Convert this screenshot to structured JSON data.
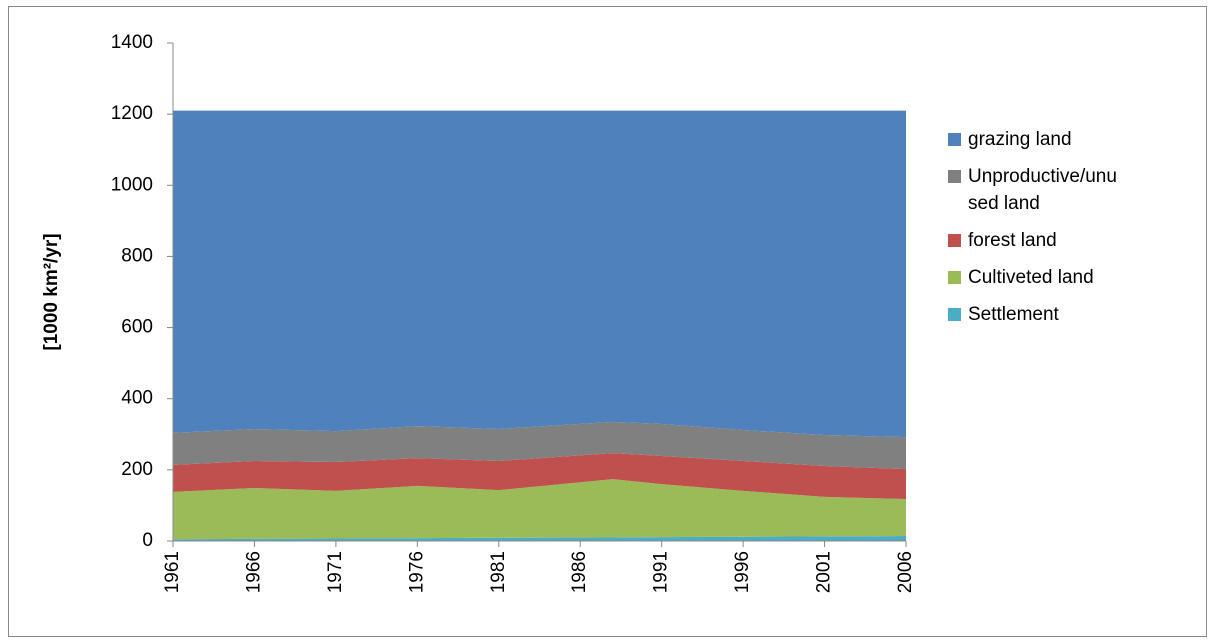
{
  "chart_data": {
    "type": "stacked-area",
    "y_label": "[1000 km²/yr]",
    "x": [
      1961,
      1966,
      1971,
      1976,
      1981,
      1988,
      1991,
      1996,
      2001,
      2006
    ],
    "xlim": [
      1961,
      2006
    ],
    "xticks": [
      1961,
      1966,
      1971,
      1976,
      1981,
      1986,
      1991,
      1996,
      2001,
      2006
    ],
    "ylim": [
      0,
      1400
    ],
    "yticks": [
      0,
      200,
      400,
      600,
      800,
      1000,
      1200,
      1400
    ],
    "grid": false,
    "legend": "right",
    "series": [
      {
        "name": "grazing land",
        "color": "#4f81bd",
        "values": [
          906,
          895,
          901,
          887,
          895,
          875,
          881,
          898,
          912,
          918
        ]
      },
      {
        "name": "Unproductive/unused land",
        "color": "#808080",
        "values": [
          90,
          90,
          87,
          90,
          90,
          88,
          90,
          87,
          87,
          90
        ]
      },
      {
        "name": "forest land",
        "color": "#c0504d",
        "values": [
          76,
          76,
          81,
          78,
          82,
          73,
          79,
          84,
          87,
          84
        ]
      },
      {
        "name": "Cultiveted land",
        "color": "#9bbb59",
        "values": [
          133,
          143,
          134,
          147,
          134,
          164,
          149,
          129,
          111,
          104
        ]
      },
      {
        "name": "Settlement",
        "color": "#4bacc6",
        "values": [
          5,
          6,
          7,
          8,
          9,
          10,
          11,
          12,
          13,
          14
        ]
      }
    ]
  }
}
